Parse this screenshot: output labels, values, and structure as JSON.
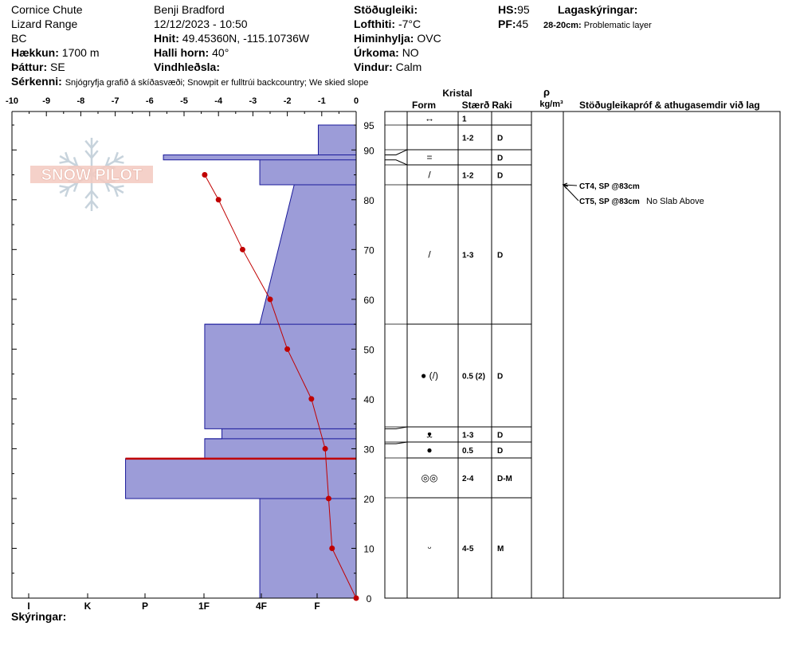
{
  "header": {
    "location": "Cornice Chute",
    "range": "Lizard Range",
    "state": "BC",
    "elevation_label": "Hækkun:",
    "elevation_value": "1700 m",
    "aspect_label": "Þáttur:",
    "aspect_value": "SE",
    "observer": "Benji Bradford",
    "datetime": "12/12/2023 - 10:50",
    "coords_label": "Hnit:",
    "coords_value": "49.45360N, -115.10736W",
    "slope_label": "Halli horn:",
    "slope_value": "40°",
    "wind_loading_label": "Vindhleðsla:",
    "wind_loading_value": "",
    "stability_label": "Stöðugleiki:",
    "stability_value": "",
    "air_temp_label": "Lofthiti:",
    "air_temp_value": "-7°C",
    "sky_label": "Himinhylja:",
    "sky_value": "OVC",
    "precip_label": "Úrkoma:",
    "precip_value": "NO",
    "wind_label": "Vindur:",
    "wind_value": "Calm",
    "hs_label": "HS:",
    "hs_value": "95",
    "pf_label": "PF:",
    "pf_value": "45",
    "layers_label": "Lagaskýringar:",
    "layer_note_range": "28-20cm:",
    "layer_note_text": "Problematic layer",
    "specifics_label": "Sérkenni:",
    "specifics_value": "Snjógryfja grafið á skíðasvæði; Snowpit er fulltrúi backcountry; We skied slope",
    "notes_label": "Skýringar:"
  },
  "logo": {
    "text": "SNOW PILOT"
  },
  "table": {
    "crystal_label": "Kristal",
    "form_label": "Form",
    "size_label": "Stærð",
    "moisture_label": "Raki",
    "density_symbol": "ρ",
    "density_unit": "kg/m³",
    "stability_header": "Stöðugleikapróf & athugasemdir við lag"
  },
  "colors": {
    "hardness_fill": "#9c9cd8",
    "hardness_stroke": "#1a1a9a",
    "temperature": "#c00000",
    "marker": "#c00000"
  },
  "chart_data": {
    "type": "snow-profile",
    "temperature_axis": {
      "ticks": [
        "-10",
        "-9",
        "-8",
        "-7",
        "-6",
        "-5",
        "-4",
        "-3",
        "-2",
        "-1",
        "0"
      ],
      "range": [
        -10,
        0
      ]
    },
    "height_axis": {
      "ticks": [
        "0",
        "10",
        "20",
        "30",
        "40",
        "50",
        "60",
        "70",
        "80",
        "90",
        "95"
      ],
      "range": [
        0,
        95
      ]
    },
    "hardness_axis": {
      "ticks": [
        "I",
        "K",
        "P",
        "1F",
        "4F",
        "F"
      ]
    },
    "hardness_profile": [
      {
        "top": 95,
        "bottom": 89,
        "hardness_index": 1.1
      },
      {
        "top": 89,
        "bottom": 88,
        "hardness_index": 5.6
      },
      {
        "top": 88,
        "bottom": 83,
        "hardness_index": 2.8
      },
      {
        "top": 83,
        "bottom": 55,
        "hardness_index_top": 1.8,
        "hardness_index_bottom": 2.8
      },
      {
        "top": 55,
        "bottom": 34,
        "hardness_index": 4.4
      },
      {
        "top": 34,
        "bottom": 32,
        "hardness_index": 3.9
      },
      {
        "top": 32,
        "bottom": 28,
        "hardness_index": 4.4
      },
      {
        "top": 28,
        "bottom": 20,
        "hardness_index": 6.7
      },
      {
        "top": 20,
        "bottom": 0,
        "hardness_index": 2.8
      }
    ],
    "problem_layer_height": 28,
    "temperature_profile": [
      {
        "h": 85,
        "t": -4.4
      },
      {
        "h": 80,
        "t": -4.0
      },
      {
        "h": 70,
        "t": -3.3
      },
      {
        "h": 60,
        "t": -2.5
      },
      {
        "h": 50,
        "t": -2.0
      },
      {
        "h": 40,
        "t": -1.3
      },
      {
        "h": 30,
        "t": -0.9
      },
      {
        "h": 20,
        "t": -0.8
      },
      {
        "h": 10,
        "t": -0.7
      },
      {
        "h": 0,
        "t": 0
      }
    ],
    "layers": [
      {
        "top": 95,
        "bottom": 89,
        "form": "↔",
        "size": "1",
        "moisture": ""
      },
      {
        "top": 89,
        "bottom": 88,
        "form": "",
        "size": "1-2",
        "moisture": "D"
      },
      {
        "top": 88,
        "bottom": 86,
        "form": "=",
        "size": "",
        "moisture": "D"
      },
      {
        "top": 86,
        "bottom": 83,
        "form": "/",
        "size": "1-2",
        "moisture": "D"
      },
      {
        "top": 83,
        "bottom": 55,
        "form": "/",
        "size": "1-3",
        "moisture": "D"
      },
      {
        "top": 55,
        "bottom": 34,
        "form": "● (/)",
        "size": "0.5 (2)",
        "moisture": "D"
      },
      {
        "top": 34,
        "bottom": 31,
        "form": "ᴥ",
        "size": "1-3",
        "moisture": "D"
      },
      {
        "top": 31,
        "bottom": 28,
        "form": "●",
        "size": "0.5",
        "moisture": "D"
      },
      {
        "top": 28,
        "bottom": 20,
        "form": "◎◎",
        "size": "2-4",
        "moisture": "D-M"
      },
      {
        "top": 20,
        "bottom": 0,
        "form": "ᵕ",
        "size": "4-5",
        "moisture": "M"
      }
    ],
    "tests": [
      {
        "height": 83,
        "code": "CT4, SP @83cm",
        "comment": ""
      },
      {
        "height": 83,
        "code": "CT5, SP @83cm",
        "comment": "No Slab Above"
      }
    ]
  }
}
